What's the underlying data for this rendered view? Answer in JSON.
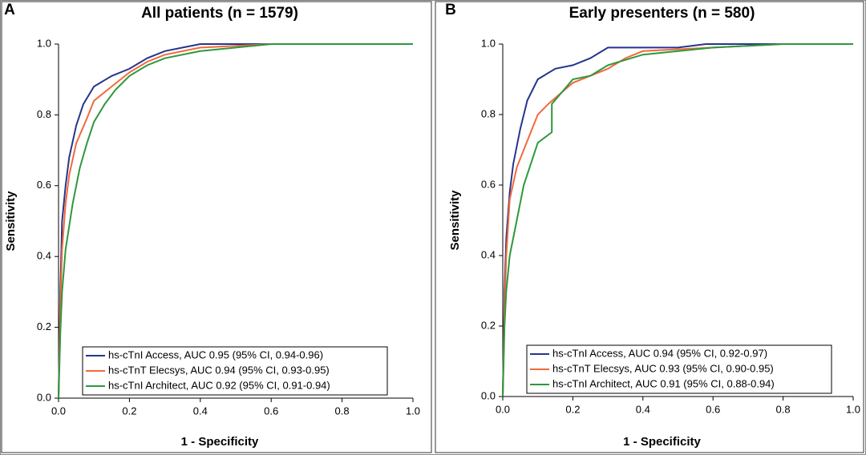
{
  "chart_data": [
    {
      "type": "line",
      "panel": "A",
      "title": "All patients (n = 1579)",
      "x_label": "1 - Specificity",
      "y_label": "Sensitivity",
      "xlim": [
        0,
        1
      ],
      "ylim": [
        0,
        1
      ],
      "xticks": [
        {
          "value": 0,
          "label": "0.0"
        },
        0.2,
        0.4,
        0.6,
        0.8,
        {
          "value": 1,
          "label": "1.0"
        }
      ],
      "yticks": [
        {
          "value": 0,
          "label": "0.0"
        },
        0.2,
        0.4,
        0.6,
        0.8,
        {
          "value": 1,
          "label": "1.0"
        }
      ],
      "legend": "lower right",
      "series": [
        {
          "name": "hs-cTnI Access, AUC 0.95 (95% CI, 0.94-0.96)",
          "color": "#26358c",
          "x": [
            0,
            0.005,
            0.01,
            0.02,
            0.03,
            0.05,
            0.07,
            0.1,
            0.15,
            0.2,
            0.25,
            0.3,
            0.35,
            0.4,
            0.6,
            1
          ],
          "values": [
            0,
            0.3,
            0.5,
            0.6,
            0.68,
            0.77,
            0.83,
            0.88,
            0.91,
            0.93,
            0.96,
            0.98,
            0.99,
            1,
            1,
            1
          ]
        },
        {
          "name": "hs-cTnT Elecsys, AUC 0.94 (95% CI, 0.93-0.95)",
          "color": "#f2693a",
          "x": [
            0,
            0.005,
            0.01,
            0.02,
            0.03,
            0.05,
            0.08,
            0.1,
            0.15,
            0.2,
            0.25,
            0.3,
            0.4,
            0.6,
            1
          ],
          "values": [
            0,
            0.25,
            0.42,
            0.55,
            0.63,
            0.72,
            0.79,
            0.84,
            0.88,
            0.92,
            0.95,
            0.97,
            0.99,
            1,
            1
          ]
        },
        {
          "name": "hs-cTnI Architect, AUC 0.92 (95% CI, 0.91-0.94)",
          "color": "#2e983c",
          "x": [
            0,
            0.005,
            0.01,
            0.02,
            0.04,
            0.06,
            0.08,
            0.1,
            0.13,
            0.16,
            0.2,
            0.25,
            0.3,
            0.4,
            0.5,
            0.6,
            1
          ],
          "values": [
            0,
            0.18,
            0.3,
            0.42,
            0.55,
            0.65,
            0.72,
            0.78,
            0.83,
            0.87,
            0.91,
            0.94,
            0.96,
            0.98,
            0.99,
            1,
            1
          ]
        }
      ]
    },
    {
      "type": "line",
      "panel": "B",
      "title": "Early presenters (n = 580)",
      "x_label": "1 - Specificity",
      "y_label": "Sensitivity",
      "xlim": [
        0,
        1
      ],
      "ylim": [
        0,
        1
      ],
      "xticks": [
        {
          "value": 0,
          "label": "0.0"
        },
        0.2,
        0.4,
        0.6,
        0.8,
        {
          "value": 1,
          "label": "1.0"
        }
      ],
      "yticks": [
        {
          "value": 0,
          "label": "0.0"
        },
        0.2,
        0.4,
        0.6,
        0.8,
        {
          "value": 1,
          "label": "1.0"
        }
      ],
      "legend": "lower right",
      "series": [
        {
          "name": "hs-cTnI Access, AUC 0.94 (95% CI, 0.92-0.97)",
          "color": "#26358c",
          "x": [
            0,
            0.005,
            0.01,
            0.02,
            0.03,
            0.05,
            0.07,
            0.1,
            0.15,
            0.2,
            0.25,
            0.3,
            0.5,
            0.58,
            1
          ],
          "values": [
            0,
            0.3,
            0.45,
            0.58,
            0.66,
            0.76,
            0.84,
            0.9,
            0.93,
            0.94,
            0.96,
            0.99,
            0.99,
            1,
            1
          ]
        },
        {
          "name": "hs-cTnT Elecsys, AUC 0.93 (95% CI, 0.90-0.95)",
          "color": "#f2693a",
          "x": [
            0,
            0.005,
            0.01,
            0.02,
            0.04,
            0.06,
            0.1,
            0.13,
            0.2,
            0.3,
            0.35,
            0.4,
            0.6,
            0.8,
            1
          ],
          "values": [
            0,
            0.25,
            0.4,
            0.56,
            0.65,
            0.7,
            0.8,
            0.83,
            0.89,
            0.93,
            0.96,
            0.98,
            0.99,
            1,
            1
          ]
        },
        {
          "name": "hs-cTnI Architect, AUC 0.91 (95% CI, 0.88-0.94)",
          "color": "#2e983c",
          "x": [
            0,
            0.005,
            0.01,
            0.02,
            0.04,
            0.06,
            0.08,
            0.1,
            0.14,
            0.14,
            0.2,
            0.25,
            0.3,
            0.4,
            0.6,
            0.8,
            1
          ],
          "values": [
            0,
            0.2,
            0.3,
            0.4,
            0.5,
            0.6,
            0.66,
            0.72,
            0.75,
            0.83,
            0.9,
            0.91,
            0.94,
            0.97,
            0.99,
            1,
            1
          ]
        }
      ]
    }
  ]
}
